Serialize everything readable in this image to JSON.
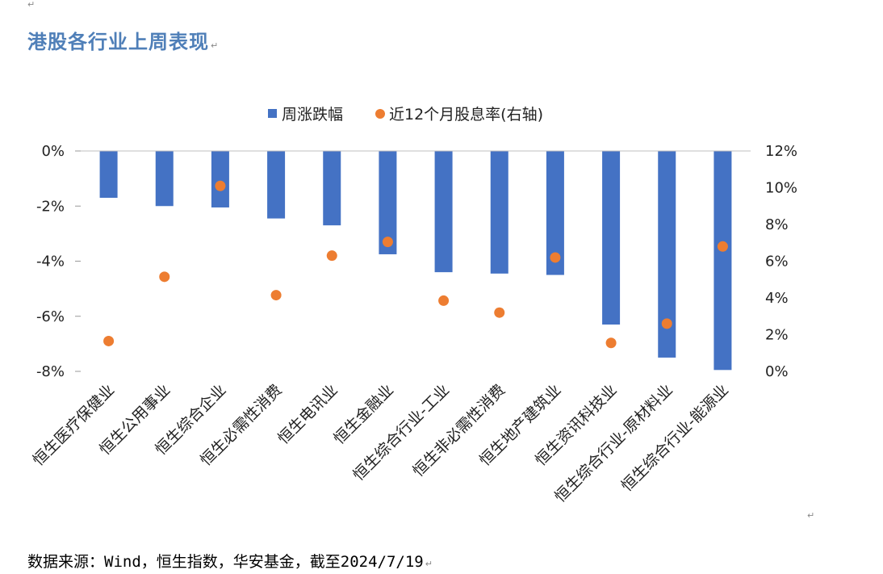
{
  "doc": {
    "title": "港股各行业上周表现",
    "source_note": "数据来源：Wind，恒生指数，华安基金，截至2024/7/19",
    "paragraph_mark": "↵"
  },
  "chart_data": {
    "type": "bar",
    "title": "",
    "categories": [
      "恒生医疗保健业",
      "恒生公用事业",
      "恒生综合企业",
      "恒生必需性消费",
      "恒生电讯业",
      "恒生金融业",
      "恒生综合行业-工业",
      "恒生非必需性消费",
      "恒生地产建筑业",
      "恒生资讯科技业",
      "恒生综合行业-原材料业",
      "恒生综合行业-能源业"
    ],
    "series": [
      {
        "name": "周涨跌幅",
        "type": "bar",
        "axis": "left",
        "color": "#4472C4",
        "values": [
          -1.7,
          -2.0,
          -2.05,
          -2.45,
          -2.7,
          -3.75,
          -4.4,
          -4.45,
          -4.5,
          -6.3,
          -7.5,
          -7.95
        ]
      },
      {
        "name": "近12个月股息率(右轴)",
        "type": "scatter",
        "axis": "right",
        "color": "#ED7D31",
        "values": [
          1.65,
          5.15,
          10.1,
          4.15,
          6.3,
          7.05,
          3.85,
          3.2,
          6.2,
          1.55,
          2.6,
          6.8
        ]
      }
    ],
    "y_left": {
      "min": -8,
      "max": 0,
      "ticks": [
        0,
        -2,
        -4,
        -6,
        -8
      ],
      "tick_labels": [
        "0%",
        "-2%",
        "-4%",
        "-6%",
        "-8%"
      ]
    },
    "y_right": {
      "min": 0,
      "max": 12,
      "ticks": [
        12,
        10,
        8,
        6,
        4,
        2,
        0
      ],
      "tick_labels": [
        "12%",
        "10%",
        "8%",
        "6%",
        "4%",
        "2%",
        "0%"
      ]
    },
    "legend_position": "top-center",
    "grid": false
  }
}
